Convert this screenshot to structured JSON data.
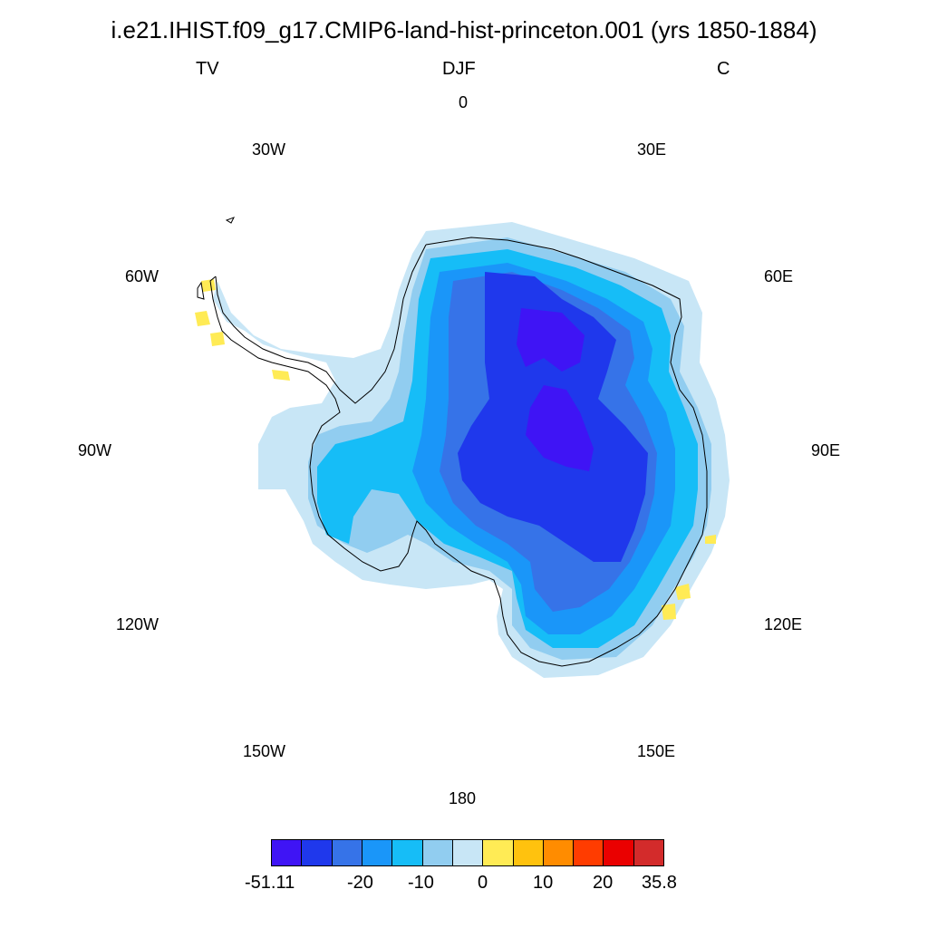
{
  "title": "i.e21.IHIST.f09_g17.CMIP6-land-hist-princeton.001 (yrs 1850-1884)",
  "subtitle_left": "TV",
  "subtitle_center": "DJF",
  "subtitle_right": "C",
  "longitude_labels": {
    "lon_0": "0",
    "lon_30e": "30E",
    "lon_60e": "60E",
    "lon_90e": "90E",
    "lon_120e": "120E",
    "lon_150e": "150E",
    "lon_180": "180",
    "lon_150w": "150W",
    "lon_120w": "120W",
    "lon_90w": "90W",
    "lon_60w": "60W",
    "lon_30w": "30W"
  },
  "colorbar": {
    "colors": [
      "#3f14f5",
      "#1f38ec",
      "#3673e8",
      "#1a96f9",
      "#16bdf7",
      "#91cdf0",
      "#c8e6f6",
      "#ffeb55",
      "#ffc20e",
      "#ff8c00",
      "#ff3c00",
      "#ea0000",
      "#d32b2b"
    ],
    "labels": {
      "min": "-51.11",
      "l_neg20": "-20",
      "l_neg10": "-10",
      "l_0": "0",
      "l_10": "10",
      "l_20": "20",
      "max": "35.8"
    }
  }
}
